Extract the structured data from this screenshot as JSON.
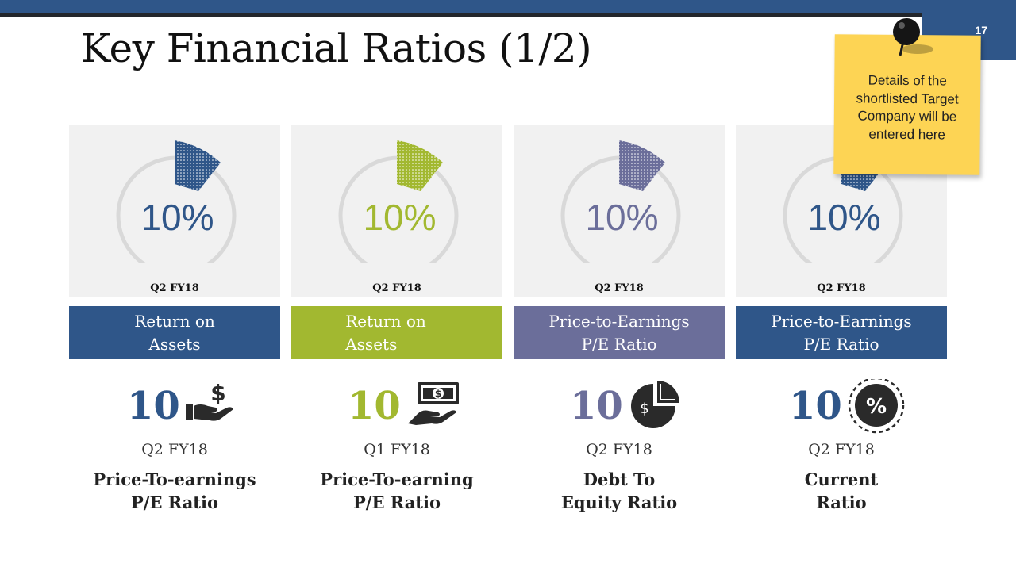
{
  "slide": {
    "title": "Key Financial Ratios (1/2)",
    "page_number": "17"
  },
  "note": {
    "text": "Details of the\nshortlisted Target\nCompany will be\nentered here"
  },
  "colors": {
    "navy": "#2f5689",
    "green": "#a2b830",
    "slate": "#6b6e9a",
    "ring": "#d9d9d9",
    "note": "#fdd454"
  },
  "cards": [
    {
      "value": "10%",
      "period": "Q2 FY18",
      "color": "#2f5689"
    },
    {
      "value": "10%",
      "period": "Q2 FY18",
      "color": "#a2b830"
    },
    {
      "value": "10%",
      "period": "Q2 FY18",
      "color": "#6b6e9a"
    },
    {
      "value": "10%",
      "period": "Q2 FY18",
      "color": "#2f5689"
    }
  ],
  "bands": [
    {
      "label": "Return on\nAssets"
    },
    {
      "label": "Return on\nAssets"
    },
    {
      "label": "Price-to-Earnings\nP/E Ratio"
    },
    {
      "label": "Price-to-Earnings\nP/E Ratio"
    }
  ],
  "kpis": [
    {
      "number": "10",
      "period": "Q2 FY18",
      "caption": "Price-To-earnings\nP/E Ratio",
      "icon": "hand-dollar-icon"
    },
    {
      "number": "10",
      "period": "Q1 FY18",
      "caption": "Price-To-earning\nP/E Ratio",
      "icon": "hand-banknote-icon"
    },
    {
      "number": "10",
      "period": "Q2 FY18",
      "caption": "Debt To\nEquity Ratio",
      "icon": "pie-dollar-icon"
    },
    {
      "number": "10",
      "period": "Q2 FY18",
      "caption": "Current\nRatio",
      "icon": "percent-badge-icon"
    }
  ],
  "icon_glyphs": {
    "dollar": "$",
    "percent": "%"
  }
}
